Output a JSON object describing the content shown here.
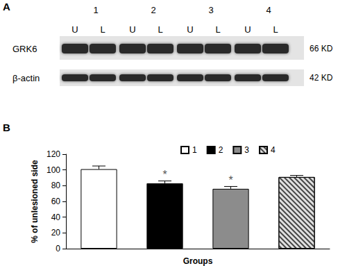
{
  "chart_data": {
    "type": "bar",
    "panel_label": "B",
    "x_label": "Groups",
    "y_label": "% of unlesioned side",
    "categories": [
      "1",
      "2",
      "3",
      "4"
    ],
    "values": [
      101,
      83,
      76,
      91
    ],
    "errors": [
      4,
      3,
      3,
      2
    ],
    "colors": [
      "#ffffff",
      "#000000",
      "#8c8c8c",
      "#e0e0e0"
    ],
    "annotations": [
      {
        "category": "2",
        "text": "*"
      },
      {
        "category": "3",
        "text": "*"
      }
    ],
    "ylim": [
      0,
      120
    ],
    "yticks": [
      0,
      20,
      40,
      60,
      80,
      100,
      120
    ],
    "grid": false,
    "legend": "top",
    "tick_labels": "y"
  },
  "blot": {
    "panel_label": "A",
    "lanes": [
      "1",
      "2",
      "3",
      "4"
    ],
    "sides": [
      "U",
      "L"
    ],
    "rows": [
      {
        "protein": "GRK6",
        "size": "66 KD"
      },
      {
        "protein": "β-actin",
        "size": "42 KD"
      }
    ]
  }
}
